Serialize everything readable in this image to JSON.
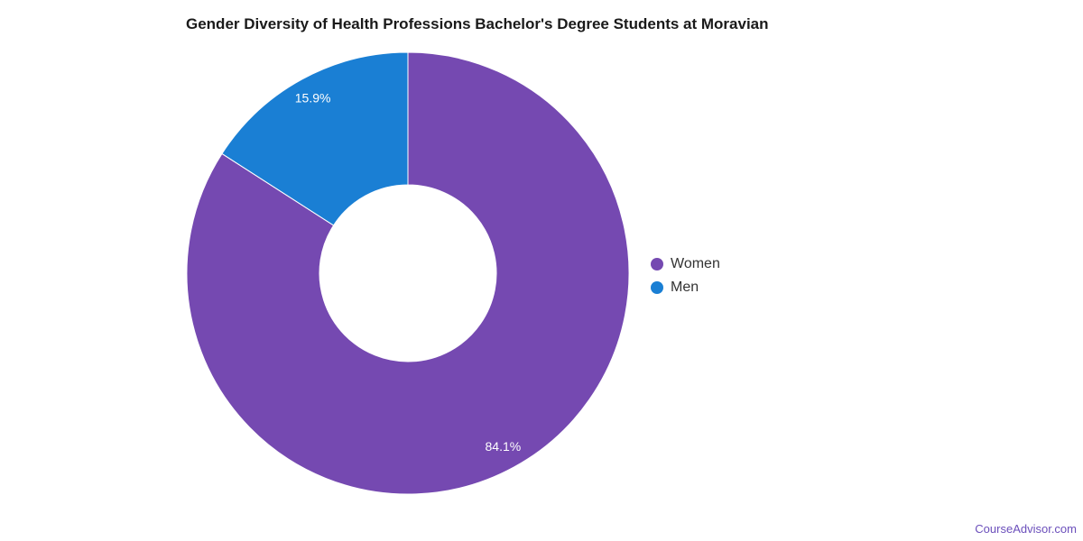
{
  "chart_data": {
    "type": "pie",
    "variant": "donut",
    "title": "Gender Diversity of Health Professions Bachelor's Degree Students at Moravian",
    "slices": [
      {
        "label": "Women",
        "value": 84.1,
        "display": "84.1%",
        "color": "#7549b1"
      },
      {
        "label": "Men",
        "value": 15.9,
        "display": "15.9%",
        "color": "#1a7fd4"
      }
    ],
    "legend_position": "right"
  },
  "legend": {
    "items": [
      {
        "label": "Women",
        "color": "#7549b1"
      },
      {
        "label": "Men",
        "color": "#1a7fd4"
      }
    ]
  },
  "footer": {
    "brand": "CourseAdvisor.com"
  }
}
